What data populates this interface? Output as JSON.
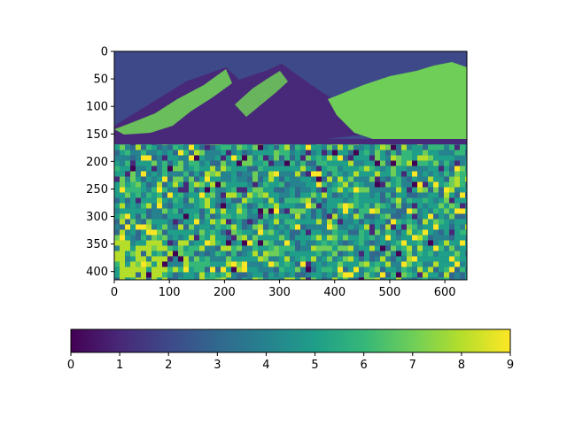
{
  "chart_data": {
    "type": "heatmap",
    "title": "",
    "xlabel": "",
    "ylabel": "",
    "image_shape": {
      "rows": 415,
      "cols": 640
    },
    "xlim": [
      0,
      640
    ],
    "ylim": [
      415,
      0
    ],
    "x_ticks": [
      0,
      100,
      200,
      300,
      400,
      500,
      600
    ],
    "y_ticks": [
      0,
      50,
      100,
      150,
      200,
      250,
      300,
      350,
      400
    ],
    "colormap": "viridis",
    "value_range": [
      0,
      9
    ],
    "colorbar": {
      "orientation": "horizontal",
      "placement": "bottom",
      "ticks": [
        0,
        1,
        2,
        3,
        4,
        5,
        6,
        7,
        8,
        9
      ]
    },
    "grid": false,
    "description_classes": {
      "sky": 2,
      "mountain_dark": 1,
      "mountain_light": 6,
      "field_mixed": [
        3,
        4,
        5,
        7,
        8
      ]
    }
  }
}
